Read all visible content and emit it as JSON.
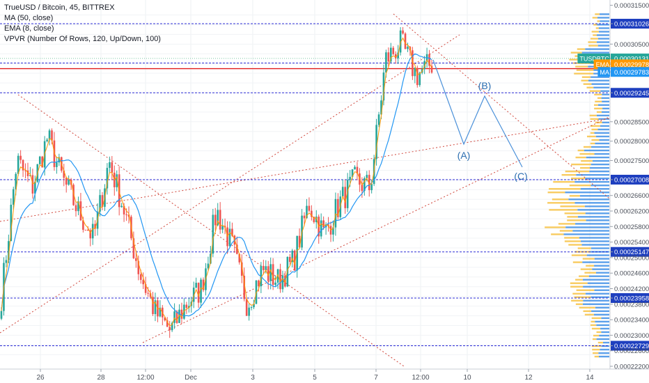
{
  "legend": {
    "title": "TrueUSD / Bitcoin, 45, BITTREX",
    "ma": "MA (50, close)",
    "ema": "EMA (8, close)",
    "vpvr": "VPVR (Number Of Rows, 120, Up/Down, 100)"
  },
  "colors": {
    "up": "#26a69a",
    "down": "#ef5350",
    "level_line": "#2b2bd6",
    "red_line": "#e01b1b",
    "trend_dotted": "#d0453a",
    "ma": "#2196f3",
    "ema": "#ff9800",
    "projection": "#4a90d9",
    "vp_up": "#3f8fe6",
    "vp_down": "#f7c244",
    "price_tag": "#26a69a",
    "label_bg": "#1e3fbf"
  },
  "chart_data": {
    "type": "candlestick",
    "symbol": "TUSDBTC",
    "y_axis_ticks": [
      "0.00031500",
      "0.00031026",
      "0.00030500",
      "0.00030131",
      "0.00030012",
      "0.00029978",
      "0.00029868",
      "0.00029783",
      "0.00029245",
      "0.00028500",
      "0.00028000",
      "0.00027500",
      "0.00027008",
      "0.00026600",
      "0.00026200",
      "0.00025800",
      "0.00025400",
      "0.00025147",
      "0.00025000",
      "0.00024600",
      "0.00024200",
      "0.00023958",
      "0.00023800",
      "0.00023400",
      "0.00023000",
      "0.00022729",
      "0.00022600",
      "0.00022200"
    ],
    "x_axis_ticks": [
      "26",
      "28",
      "12:00",
      "Dec",
      "3",
      "5",
      "7",
      "12:00",
      "10",
      "12",
      "14"
    ],
    "ylim": [
      0.000222,
      0.000316
    ],
    "horizontal_levels": [
      0.00031026,
      0.00030012,
      0.00029245,
      0.00027008,
      0.00025147,
      0.00023958,
      0.00022729
    ],
    "red_level": 0.00029868,
    "price_tags": [
      {
        "label": "TUSDBTC",
        "value": "0.00030131"
      },
      {
        "label": "EMA",
        "value": "0.00029978"
      },
      {
        "label": "MA",
        "value": "0.00029783"
      }
    ],
    "projection_labels": [
      "(A)",
      "(B)",
      "(C)"
    ],
    "projection_path": [
      {
        "x": "Dec 7 18:00",
        "y": 0.0003
      },
      {
        "x": "Dec 9 12:00",
        "y": 0.000277
      },
      {
        "x": "Dec 10 12:00",
        "y": 0.000292
      },
      {
        "x": "Dec 11 18:00",
        "y": 0.00027
      }
    ],
    "ohlc_anchor_closes": [
      0.00024,
      0.000275,
      0.000268,
      0.000281,
      0.00027,
      0.000262,
      0.000255,
      0.000275,
      0.000262,
      0.000246,
      0.000236,
      0.000231,
      0.000238,
      0.000242,
      0.000262,
      0.000253,
      0.000238,
      0.000247,
      0.000244,
      0.000249,
      0.000264,
      0.000256,
      0.000264,
      0.00027,
      0.000268,
      0.000301,
      0.000305,
      0.000297,
      0.0003
    ]
  }
}
